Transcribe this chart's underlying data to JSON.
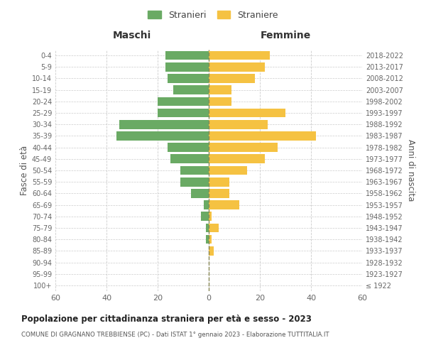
{
  "age_groups": [
    "100+",
    "95-99",
    "90-94",
    "85-89",
    "80-84",
    "75-79",
    "70-74",
    "65-69",
    "60-64",
    "55-59",
    "50-54",
    "45-49",
    "40-44",
    "35-39",
    "30-34",
    "25-29",
    "20-24",
    "15-19",
    "10-14",
    "5-9",
    "0-4"
  ],
  "birth_years": [
    "≤ 1922",
    "1923-1927",
    "1928-1932",
    "1933-1937",
    "1938-1942",
    "1943-1947",
    "1948-1952",
    "1953-1957",
    "1958-1962",
    "1963-1967",
    "1968-1972",
    "1973-1977",
    "1978-1982",
    "1983-1987",
    "1988-1992",
    "1993-1997",
    "1998-2002",
    "2003-2007",
    "2008-2012",
    "2013-2017",
    "2018-2022"
  ],
  "males": [
    0,
    0,
    0,
    0,
    1,
    1,
    3,
    2,
    7,
    11,
    11,
    15,
    16,
    36,
    35,
    20,
    20,
    14,
    16,
    17,
    17
  ],
  "females": [
    0,
    0,
    0,
    2,
    1,
    4,
    1,
    12,
    8,
    8,
    15,
    22,
    27,
    42,
    23,
    30,
    9,
    9,
    18,
    22,
    24
  ],
  "male_color": "#6aaa64",
  "female_color": "#f5c242",
  "grid_color": "#cccccc",
  "center_line_color": "#888855",
  "title": "Popolazione per cittadinanza straniera per età e sesso - 2023",
  "subtitle": "COMUNE DI GRAGNANO TREBBIENSE (PC) - Dati ISTAT 1° gennaio 2023 - Elaborazione TUTTITALIA.IT",
  "xlabel_left": "Maschi",
  "xlabel_right": "Femmine",
  "ylabel_left": "Fasce di età",
  "ylabel_right": "Anni di nascita",
  "legend_male": "Stranieri",
  "legend_female": "Straniere",
  "xlim": 60,
  "background_color": "#ffffff"
}
